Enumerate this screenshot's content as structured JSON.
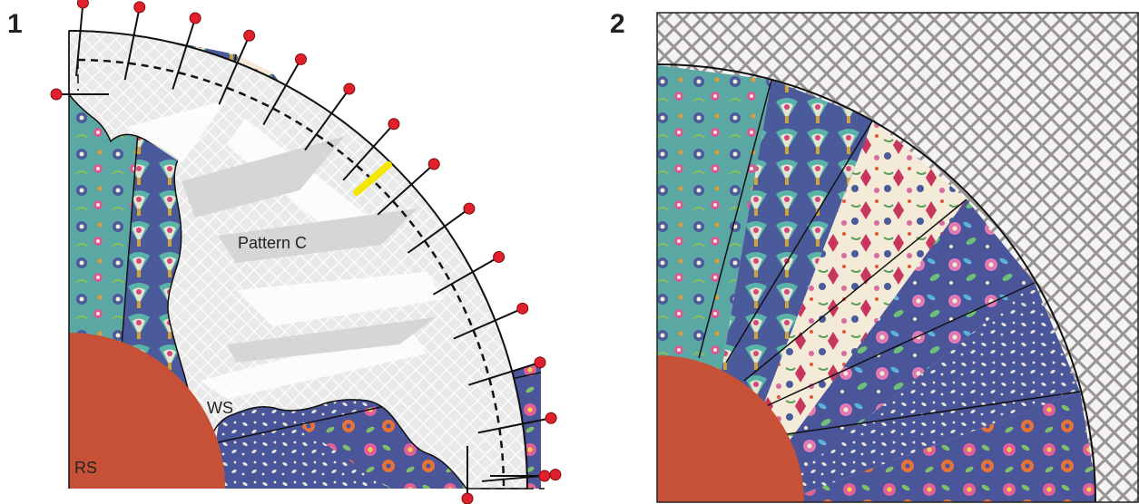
{
  "panels": {
    "first": {
      "number": "1"
    },
    "second": {
      "number": "2"
    }
  },
  "labels": {
    "pattern": "Pattern C",
    "ws": "WS",
    "rs": "RS"
  },
  "colors": {
    "center": "#c65137",
    "teal": "#5aa7a3",
    "navy": "#4a5a9a",
    "cream": "#f4ead8",
    "pin": "#e0202a",
    "highlight": "#f3e600",
    "template": "#e6e6e6",
    "mesh": "#a19a9a"
  },
  "pins": {
    "count": 14
  }
}
